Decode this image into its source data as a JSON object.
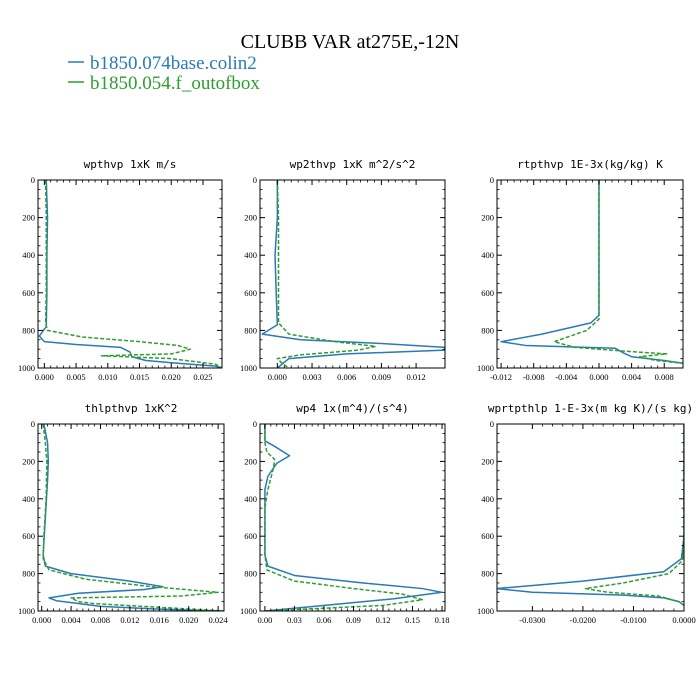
{
  "figure": {
    "title": "CLUBB VAR at275E,-12N",
    "legend": [
      {
        "label": "b1850.074base.colin2",
        "color": "#2b79b5",
        "style": "solid"
      },
      {
        "label": "b1850.054.f_outofbox",
        "color": "#2e9e2e",
        "style": "dashed"
      }
    ]
  },
  "chart_data": [
    {
      "type": "line",
      "title": "wpthvp  1xK m/s",
      "xlim": [
        -0.001,
        0.028
      ],
      "ylim": [
        0,
        1000
      ],
      "y_inverted": true,
      "xticks": [
        0,
        0.005,
        0.01,
        0.015,
        0.02,
        0.025
      ],
      "xtick_labels": [
        "0.000",
        "0.005",
        "0.010",
        "0.015",
        "0.020",
        "0.025"
      ],
      "yticks": [
        0,
        200,
        400,
        600,
        800,
        1000
      ],
      "ytick_labels": [
        "0",
        "200",
        "400",
        "600",
        "800",
        "1000"
      ],
      "series": [
        {
          "name": "b1850.074base.colin2",
          "points": [
            [
              0.0003,
              0
            ],
            [
              0.0004,
              100
            ],
            [
              0.0005,
              200
            ],
            [
              0.0004,
              400
            ],
            [
              0.0004,
              600
            ],
            [
              0.0003,
              780
            ],
            [
              -0.0008,
              830
            ],
            [
              0.0,
              860
            ],
            [
              0.005,
              875
            ],
            [
              0.012,
              890
            ],
            [
              0.0135,
              915
            ],
            [
              0.0138,
              940
            ],
            [
              0.016,
              960
            ],
            [
              0.021,
              975
            ],
            [
              0.027,
              990
            ],
            [
              0.028,
              1000
            ]
          ]
        },
        {
          "name": "b1850.054.f_outofbox",
          "points": [
            [
              0.0002,
              0
            ],
            [
              0.0003,
              200
            ],
            [
              0.0003,
              400
            ],
            [
              0.0003,
              600
            ],
            [
              0.0002,
              760
            ],
            [
              0.0005,
              800
            ],
            [
              0.006,
              835
            ],
            [
              0.015,
              860
            ],
            [
              0.021,
              880
            ],
            [
              0.023,
              900
            ],
            [
              0.02,
              925
            ],
            [
              0.009,
              935
            ],
            [
              0.02,
              950
            ],
            [
              0.027,
              980
            ],
            [
              0.028,
              1000
            ]
          ]
        }
      ]
    },
    {
      "type": "line",
      "title": "wp2thvp  1xK m^2/s^2",
      "xlim": [
        -0.0015,
        0.0145
      ],
      "ylim": [
        0,
        1000
      ],
      "y_inverted": true,
      "xticks": [
        0,
        0.003,
        0.006,
        0.009,
        0.012
      ],
      "xtick_labels": [
        "0.000",
        "0.003",
        "0.006",
        "0.009",
        "0.012"
      ],
      "yticks": [
        0,
        200,
        400,
        600,
        800,
        1000
      ],
      "ytick_labels": [
        "0",
        "200",
        "400",
        "600",
        "800",
        "1000"
      ],
      "series": [
        {
          "name": "b1850.074base.colin2",
          "points": [
            [
              0.0,
              0
            ],
            [
              0.0,
              200
            ],
            [
              -0.0002,
              400
            ],
            [
              -0.0001,
              600
            ],
            [
              0.0,
              770
            ],
            [
              -0.0013,
              820
            ],
            [
              0.002,
              850
            ],
            [
              0.009,
              870
            ],
            [
              0.0145,
              890
            ],
            [
              0.0145,
              905
            ],
            [
              0.006,
              925
            ],
            [
              0.001,
              950
            ],
            [
              0.0,
              1000
            ]
          ]
        },
        {
          "name": "b1850.054.f_outofbox",
          "points": [
            [
              0.0,
              0
            ],
            [
              0.0001,
              200
            ],
            [
              0.0001,
              400
            ],
            [
              0.0001,
              600
            ],
            [
              0.0001,
              760
            ],
            [
              0.001,
              820
            ],
            [
              0.005,
              860
            ],
            [
              0.0085,
              885
            ],
            [
              0.007,
              905
            ],
            [
              0.002,
              930
            ],
            [
              0.0,
              950
            ],
            [
              0.0005,
              980
            ],
            [
              0.001,
              1000
            ]
          ]
        }
      ]
    },
    {
      "type": "line",
      "title": "rtpthvp  1E-3x(kg/kg) K",
      "xlim": [
        -0.0125,
        0.0103
      ],
      "ylim": [
        0,
        1000
      ],
      "y_inverted": true,
      "xticks": [
        -0.012,
        -0.008,
        -0.004,
        0,
        0.004,
        0.008
      ],
      "xtick_labels": [
        "-0.012",
        "-0.008",
        "-0.004",
        "0.000",
        "0.004",
        "0.008"
      ],
      "yticks": [
        0,
        200,
        400,
        600,
        800,
        1000
      ],
      "ytick_labels": [
        "0",
        "200",
        "400",
        "600",
        "800",
        "1000"
      ],
      "series": [
        {
          "name": "b1850.074base.colin2",
          "points": [
            [
              0.0,
              0
            ],
            [
              0.0,
              300
            ],
            [
              0.0,
              600
            ],
            [
              0.0,
              720
            ],
            [
              -0.001,
              760
            ],
            [
              -0.007,
              820
            ],
            [
              -0.012,
              860
            ],
            [
              -0.009,
              880
            ],
            [
              0.002,
              895
            ],
            [
              0.003,
              920
            ],
            [
              0.004,
              940
            ],
            [
              0.008,
              960
            ],
            [
              0.0103,
              975
            ]
          ]
        },
        {
          "name": "b1850.054.f_outofbox",
          "points": [
            [
              0.0,
              0
            ],
            [
              0.0,
              300
            ],
            [
              0.0,
              600
            ],
            [
              0.0,
              740
            ],
            [
              -0.0015,
              800
            ],
            [
              -0.0055,
              860
            ],
            [
              -0.003,
              890
            ],
            [
              0.003,
              910
            ],
            [
              0.0083,
              925
            ],
            [
              0.005,
              940
            ],
            [
              0.007,
              960
            ],
            [
              0.0103,
              975
            ]
          ]
        }
      ]
    },
    {
      "type": "line",
      "title": "thlpthvp  1xK^2",
      "xlim": [
        -0.0005,
        0.0248
      ],
      "ylim": [
        0,
        1000
      ],
      "y_inverted": true,
      "xticks": [
        0,
        0.004,
        0.008,
        0.012,
        0.016,
        0.02,
        0.024
      ],
      "xtick_labels": [
        "0.000",
        "0.004",
        "0.008",
        "0.012",
        "0.016",
        "0.020",
        "0.024"
      ],
      "yticks": [
        0,
        200,
        400,
        600,
        800,
        1000
      ],
      "ytick_labels": [
        "0",
        "200",
        "400",
        "600",
        "800",
        "1000"
      ],
      "series": [
        {
          "name": "b1850.074base.colin2",
          "points": [
            [
              0.0003,
              0
            ],
            [
              0.0008,
              100
            ],
            [
              0.0009,
              200
            ],
            [
              0.0008,
              300
            ],
            [
              0.0005,
              500
            ],
            [
              0.0002,
              700
            ],
            [
              0.0005,
              760
            ],
            [
              0.004,
              800
            ],
            [
              0.012,
              840
            ],
            [
              0.0165,
              870
            ],
            [
              0.014,
              885
            ],
            [
              0.005,
              905
            ],
            [
              0.001,
              930
            ],
            [
              0.002,
              945
            ],
            [
              0.005,
              960
            ],
            [
              0.008,
              975
            ],
            [
              0.016,
              990
            ],
            [
              0.0248,
              1000
            ]
          ]
        },
        {
          "name": "b1850.054.f_outofbox",
          "points": [
            [
              0.0002,
              0
            ],
            [
              0.0005,
              100
            ],
            [
              0.0007,
              200
            ],
            [
              0.0006,
              400
            ],
            [
              0.0003,
              600
            ],
            [
              0.0002,
              720
            ],
            [
              0.001,
              780
            ],
            [
              0.006,
              830
            ],
            [
              0.015,
              870
            ],
            [
              0.024,
              900
            ],
            [
              0.019,
              920
            ],
            [
              0.004,
              930
            ],
            [
              0.005,
              950
            ],
            [
              0.007,
              960
            ],
            [
              0.0248,
              1000
            ]
          ]
        }
      ]
    },
    {
      "type": "line",
      "title": "wp4  1x(m^4)/(s^4)",
      "xlim": [
        -0.005,
        0.183
      ],
      "ylim": [
        0,
        1000
      ],
      "y_inverted": true,
      "xticks": [
        0,
        0.03,
        0.06,
        0.09,
        0.12,
        0.15,
        0.18
      ],
      "xtick_labels": [
        "0.00",
        "0.03",
        "0.06",
        "0.09",
        "0.12",
        "0.15",
        "0.18"
      ],
      "yticks": [
        0,
        200,
        400,
        600,
        800,
        1000
      ],
      "ytick_labels": [
        "0",
        "200",
        "400",
        "600",
        "800",
        "1000"
      ],
      "series": [
        {
          "name": "b1850.074base.colin2",
          "points": [
            [
              0.0,
              0
            ],
            [
              0.0,
              90
            ],
            [
              0.01,
              120
            ],
            [
              0.025,
              170
            ],
            [
              0.012,
              210
            ],
            [
              0.003,
              280
            ],
            [
              0.0,
              350
            ],
            [
              0.0,
              500
            ],
            [
              0.0,
              700
            ],
            [
              0.003,
              760
            ],
            [
              0.03,
              810
            ],
            [
              0.1,
              850
            ],
            [
              0.16,
              880
            ],
            [
              0.18,
              900
            ],
            [
              0.13,
              935
            ],
            [
              0.05,
              975
            ],
            [
              0.0,
              1000
            ]
          ]
        },
        {
          "name": "b1850.054.f_outofbox",
          "points": [
            [
              0.0,
              0
            ],
            [
              0.0,
              100
            ],
            [
              0.002,
              150
            ],
            [
              0.01,
              190
            ],
            [
              0.008,
              250
            ],
            [
              0.003,
              350
            ],
            [
              0.0,
              450
            ],
            [
              0.0,
              700
            ],
            [
              0.002,
              780
            ],
            [
              0.03,
              840
            ],
            [
              0.09,
              880
            ],
            [
              0.14,
              910
            ],
            [
              0.16,
              940
            ],
            [
              0.12,
              970
            ],
            [
              0.0,
              1000
            ]
          ]
        }
      ]
    },
    {
      "type": "line",
      "title": "wprtpthlp  1-E-3x(m kg K)/(s kg)",
      "xlim": [
        -0.037,
        0.0
      ],
      "ylim": [
        0,
        1000
      ],
      "y_inverted": true,
      "xticks": [
        -0.03,
        -0.02,
        -0.01,
        0
      ],
      "xtick_labels": [
        "-0.0300",
        "-0.0200",
        "-0.0100",
        "0.0000"
      ],
      "yticks": [
        0,
        200,
        400,
        600,
        800,
        1000
      ],
      "ytick_labels": [
        "0",
        "200",
        "400",
        "600",
        "800",
        "1000"
      ],
      "series": [
        {
          "name": "b1850.074base.colin2",
          "points": [
            [
              0.0,
              0
            ],
            [
              0.0,
              300
            ],
            [
              0.0,
              600
            ],
            [
              -0.0005,
              720
            ],
            [
              -0.004,
              790
            ],
            [
              -0.02,
              840
            ],
            [
              -0.037,
              880
            ],
            [
              -0.03,
              900
            ],
            [
              -0.012,
              915
            ],
            [
              -0.004,
              930
            ],
            [
              -0.001,
              950
            ],
            [
              0.0,
              970
            ]
          ]
        },
        {
          "name": "b1850.054.f_outofbox",
          "points": [
            [
              0.0,
              0
            ],
            [
              0.0,
              300
            ],
            [
              0.0,
              600
            ],
            [
              -0.0003,
              730
            ],
            [
              -0.003,
              800
            ],
            [
              -0.012,
              850
            ],
            [
              -0.0195,
              880
            ],
            [
              -0.015,
              900
            ],
            [
              -0.005,
              920
            ],
            [
              -0.001,
              950
            ],
            [
              0.0,
              970
            ]
          ]
        }
      ]
    }
  ]
}
